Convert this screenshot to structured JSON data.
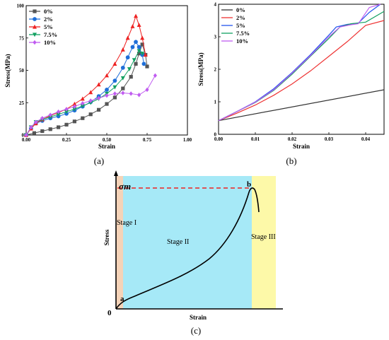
{
  "chart_data": [
    {
      "panel": "(a)",
      "type": "line",
      "xlabel": "Strain",
      "ylabel": "Stress(MPa)",
      "xlim": [
        0,
        1.0
      ],
      "ylim": [
        0,
        100
      ],
      "xticks": [
        "0.00",
        "0.25",
        "0.50",
        "0.75",
        "1.00"
      ],
      "yticks": [
        "0",
        "25",
        "50",
        "75",
        "100"
      ],
      "legend_position": "top-left",
      "series": [
        {
          "name": "0%",
          "color": "#555555",
          "marker": "square",
          "x": [
            0,
            0.05,
            0.1,
            0.15,
            0.2,
            0.25,
            0.3,
            0.35,
            0.4,
            0.45,
            0.5,
            0.55,
            0.6,
            0.65,
            0.68,
            0.7,
            0.72,
            0.74,
            0.75
          ],
          "y": [
            0,
            1.5,
            3,
            4.5,
            6,
            8,
            10.5,
            13,
            16,
            19.5,
            24,
            29,
            36,
            45,
            55,
            63,
            70,
            62,
            53
          ]
        },
        {
          "name": "2%",
          "color": "#1f6fd8",
          "marker": "circle",
          "x": [
            0,
            0.03,
            0.06,
            0.1,
            0.15,
            0.2,
            0.25,
            0.3,
            0.35,
            0.4,
            0.45,
            0.5,
            0.55,
            0.6,
            0.63,
            0.66,
            0.68,
            0.7,
            0.72,
            0.73
          ],
          "y": [
            0,
            5,
            9,
            11,
            13,
            14.5,
            16.5,
            19,
            22,
            25.5,
            30,
            35,
            42,
            52,
            60,
            68,
            72,
            68,
            62,
            55
          ]
        },
        {
          "name": "5%",
          "color": "#ee2222",
          "marker": "triangle-up",
          "x": [
            0,
            0.03,
            0.06,
            0.1,
            0.15,
            0.2,
            0.25,
            0.3,
            0.35,
            0.4,
            0.45,
            0.5,
            0.55,
            0.6,
            0.63,
            0.66,
            0.68,
            0.7,
            0.72,
            0.74
          ],
          "y": [
            0,
            5,
            9,
            12,
            15,
            17.5,
            20,
            24,
            28,
            33,
            39,
            46,
            55,
            66,
            75,
            84,
            92,
            85,
            75,
            62
          ]
        },
        {
          "name": "7.5%",
          "color": "#11a060",
          "marker": "triangle-down",
          "x": [
            0,
            0.03,
            0.06,
            0.1,
            0.15,
            0.2,
            0.25,
            0.3,
            0.35,
            0.4,
            0.45,
            0.5,
            0.55,
            0.6,
            0.64,
            0.67,
            0.7,
            0.72
          ],
          "y": [
            0,
            6,
            10,
            12,
            14,
            16,
            18,
            20,
            22.5,
            25,
            28,
            32,
            37,
            44,
            51,
            58,
            65,
            63
          ]
        },
        {
          "name": "10%",
          "color": "#c05cf0",
          "marker": "diamond",
          "x": [
            0,
            0.03,
            0.06,
            0.1,
            0.15,
            0.2,
            0.25,
            0.3,
            0.35,
            0.4,
            0.45,
            0.5,
            0.55,
            0.6,
            0.65,
            0.7,
            0.75,
            0.8
          ],
          "y": [
            0,
            6,
            10,
            13,
            15.5,
            18,
            20,
            22,
            24.5,
            26.5,
            28.5,
            30.5,
            32,
            32.5,
            32,
            31,
            35,
            46
          ]
        }
      ]
    },
    {
      "panel": "(b)",
      "type": "line",
      "xlabel": "Strain",
      "ylabel": "Stress(MPa)",
      "xlim": [
        0,
        0.045
      ],
      "ylim": [
        0,
        4
      ],
      "xticks": [
        "0.00",
        "0.01",
        "0.02",
        "0.03",
        "0.04"
      ],
      "yticks": [
        "0",
        "1",
        "2",
        "3",
        "4"
      ],
      "legend_position": "top-left",
      "series": [
        {
          "name": "0%",
          "color": "#333333",
          "x": [
            0,
            0.045
          ],
          "y": [
            0.42,
            1.37
          ]
        },
        {
          "name": "2%",
          "color": "#ee3333",
          "x": [
            0,
            0.005,
            0.01,
            0.015,
            0.02,
            0.025,
            0.03,
            0.035,
            0.04,
            0.045
          ],
          "y": [
            0.42,
            0.65,
            0.9,
            1.2,
            1.55,
            1.95,
            2.4,
            2.85,
            3.35,
            3.5
          ]
        },
        {
          "name": "5%",
          "color": "#2255ee",
          "x": [
            0,
            0.005,
            0.01,
            0.015,
            0.02,
            0.025,
            0.03,
            0.032,
            0.035,
            0.038,
            0.041,
            0.044
          ],
          "y": [
            0.42,
            0.7,
            1.0,
            1.4,
            1.9,
            2.45,
            3.05,
            3.3,
            3.38,
            3.42,
            3.75,
            4.0
          ]
        },
        {
          "name": "7.5%",
          "color": "#11a060",
          "x": [
            0,
            0.005,
            0.01,
            0.015,
            0.02,
            0.025,
            0.03,
            0.033,
            0.036,
            0.04,
            0.045
          ],
          "y": [
            0.42,
            0.7,
            0.98,
            1.35,
            1.85,
            2.4,
            2.95,
            3.3,
            3.4,
            3.45,
            3.78
          ]
        },
        {
          "name": "10%",
          "color": "#c05cf0",
          "x": [
            0,
            0.005,
            0.01,
            0.015,
            0.02,
            0.025,
            0.03,
            0.033,
            0.036,
            0.038,
            0.041,
            0.044
          ],
          "y": [
            0.42,
            0.7,
            0.99,
            1.37,
            1.88,
            2.42,
            3.0,
            3.3,
            3.37,
            3.4,
            3.9,
            4.0
          ]
        }
      ]
    },
    {
      "panel": "(c)",
      "type": "line",
      "xlabel": "Strain",
      "ylabel": "Stress",
      "sigma_label": "σm",
      "origin_label": "0",
      "point_a": "a",
      "point_b": "b",
      "stages": [
        {
          "label": "Stage I",
          "color": "#f5d3b8"
        },
        {
          "label": "Stage II",
          "color": "#a6e9f7"
        },
        {
          "label": "Stage III",
          "color": "#fdf9a8"
        }
      ],
      "peak_line_color": "#ee2222"
    }
  ],
  "captions": {
    "a": "(a)",
    "b": "(b)",
    "c": "(c)"
  }
}
